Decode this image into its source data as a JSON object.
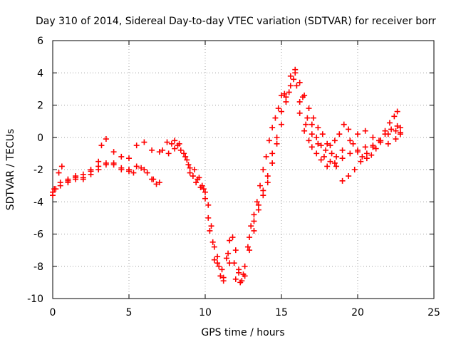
{
  "chart_data": {
    "type": "scatter",
    "title": "Day 310 of 2014, Sidereal Day-to-day VTEC variation (SDTVAR) for receiver borr",
    "xlabel": "GPS time / hours",
    "ylabel": "SDTVAR / TECUs",
    "xlim": [
      0,
      25
    ],
    "ylim": [
      -10,
      6
    ],
    "xticks": [
      "0",
      "5",
      "10",
      "15",
      "20",
      "25"
    ],
    "yticks": [
      "-10",
      "-8",
      "-6",
      "-4",
      "-2",
      "0",
      "2",
      "4",
      "6"
    ],
    "grid": true,
    "marker": "+",
    "color": "#ff0000",
    "series": [
      {
        "points": [
          [
            0.0,
            -3.6
          ],
          [
            0.2,
            -3.2
          ],
          [
            0.4,
            -2.2
          ],
          [
            0.6,
            -1.8
          ],
          [
            1.0,
            -2.7
          ],
          [
            1.5,
            -2.5
          ],
          [
            2.0,
            -2.6
          ],
          [
            2.5,
            -2.3
          ],
          [
            3.0,
            -1.5
          ],
          [
            3.2,
            -0.5
          ],
          [
            3.5,
            -0.1
          ],
          [
            4.0,
            -0.9
          ],
          [
            4.5,
            -1.2
          ],
          [
            5.0,
            -1.3
          ],
          [
            5.5,
            -0.5
          ],
          [
            6.0,
            -0.3
          ],
          [
            6.5,
            -0.8
          ],
          [
            7.0,
            -0.9
          ],
          [
            7.5,
            -0.3
          ],
          [
            8.0,
            -0.2
          ],
          [
            8.4,
            -0.8
          ],
          [
            8.8,
            -1.4
          ],
          [
            9.0,
            -1.9
          ],
          [
            9.3,
            -2.0
          ],
          [
            9.6,
            -2.5
          ],
          [
            9.8,
            -3.0
          ],
          [
            10.0,
            -3.4
          ],
          [
            10.2,
            -4.2
          ],
          [
            10.4,
            -5.5
          ],
          [
            10.6,
            -6.8
          ],
          [
            10.8,
            -7.8
          ],
          [
            11.0,
            -8.6
          ],
          [
            11.2,
            -8.9
          ],
          [
            11.5,
            -7.2
          ],
          [
            11.8,
            -6.2
          ],
          [
            12.0,
            -7.0
          ],
          [
            12.2,
            -8.2
          ],
          [
            12.4,
            -8.9
          ],
          [
            12.6,
            -8.0
          ],
          [
            12.8,
            -6.8
          ],
          [
            13.0,
            -5.5
          ],
          [
            13.2,
            -4.8
          ],
          [
            13.4,
            -4.0
          ],
          [
            13.6,
            -3.0
          ],
          [
            13.8,
            -2.0
          ],
          [
            14.0,
            -1.2
          ],
          [
            14.2,
            -0.2
          ],
          [
            14.4,
            0.6
          ],
          [
            14.6,
            1.2
          ],
          [
            14.8,
            1.8
          ],
          [
            15.0,
            2.6
          ],
          [
            15.2,
            2.7
          ],
          [
            15.5,
            2.8
          ],
          [
            15.8,
            3.6
          ],
          [
            16.0,
            3.2
          ],
          [
            16.2,
            1.5
          ],
          [
            16.5,
            0.4
          ],
          [
            16.8,
            -0.2
          ],
          [
            17.0,
            -0.6
          ],
          [
            17.3,
            -1.0
          ],
          [
            17.6,
            -1.4
          ],
          [
            18.0,
            -1.8
          ],
          [
            18.5,
            -1.6
          ],
          [
            19.0,
            -1.3
          ],
          [
            19.5,
            -1.0
          ],
          [
            20.0,
            -0.8
          ],
          [
            20.5,
            -0.6
          ],
          [
            21.0,
            -0.5
          ],
          [
            21.5,
            -0.2
          ],
          [
            22.0,
            0.2
          ],
          [
            22.5,
            0.4
          ],
          [
            22.8,
            0.6
          ]
        ]
      },
      {
        "points": [
          [
            0.0,
            -3.4
          ],
          [
            0.5,
            -3.0
          ],
          [
            1.0,
            -2.8
          ],
          [
            1.5,
            -2.6
          ],
          [
            2.0,
            -2.3
          ],
          [
            2.5,
            -2.1
          ],
          [
            3.0,
            -2.0
          ],
          [
            3.5,
            -1.7
          ],
          [
            4.0,
            -1.6
          ],
          [
            4.5,
            -2.0
          ],
          [
            5.0,
            -2.1
          ],
          [
            5.5,
            -1.8
          ],
          [
            6.0,
            -2.0
          ],
          [
            6.5,
            -2.6
          ],
          [
            6.8,
            -2.9
          ],
          [
            7.2,
            -0.8
          ],
          [
            7.8,
            -0.4
          ],
          [
            8.2,
            -0.5
          ],
          [
            8.6,
            -1.0
          ],
          [
            8.9,
            -1.7
          ],
          [
            9.2,
            -2.4
          ],
          [
            9.5,
            -2.6
          ],
          [
            9.9,
            -3.2
          ],
          [
            10.2,
            -5.0
          ],
          [
            10.5,
            -6.5
          ],
          [
            10.8,
            -7.4
          ],
          [
            11.1,
            -8.2
          ],
          [
            11.4,
            -7.5
          ],
          [
            11.6,
            -6.4
          ],
          [
            11.9,
            -7.8
          ],
          [
            12.2,
            -8.4
          ],
          [
            12.5,
            -8.5
          ],
          [
            12.9,
            -7.0
          ],
          [
            13.2,
            -5.8
          ],
          [
            13.5,
            -4.5
          ],
          [
            13.8,
            -3.6
          ],
          [
            14.1,
            -2.8
          ],
          [
            14.4,
            -1.6
          ],
          [
            14.7,
            -0.4
          ],
          [
            15.0,
            0.8
          ],
          [
            15.3,
            2.2
          ],
          [
            15.6,
            3.2
          ],
          [
            15.9,
            4.2
          ],
          [
            16.2,
            3.4
          ],
          [
            16.5,
            2.6
          ],
          [
            16.8,
            1.8
          ],
          [
            17.1,
            1.2
          ],
          [
            17.4,
            0.6
          ],
          [
            17.7,
            0.2
          ],
          [
            18.0,
            -0.4
          ],
          [
            18.3,
            -1.0
          ],
          [
            18.6,
            -1.2
          ],
          [
            19.0,
            -0.8
          ],
          [
            19.5,
            -0.2
          ],
          [
            20.0,
            0.2
          ],
          [
            20.5,
            0.4
          ],
          [
            21.0,
            0.0
          ],
          [
            21.5,
            -0.2
          ],
          [
            22.0,
            -0.4
          ],
          [
            22.5,
            -0.1
          ],
          [
            22.8,
            0.2
          ]
        ]
      },
      {
        "points": [
          [
            0.1,
            -3.2
          ],
          [
            0.5,
            -2.8
          ],
          [
            1.0,
            -2.6
          ],
          [
            1.5,
            -2.4
          ],
          [
            2.0,
            -2.5
          ],
          [
            2.5,
            -2.0
          ],
          [
            3.0,
            -1.8
          ],
          [
            3.5,
            -1.6
          ],
          [
            4.0,
            -1.7
          ],
          [
            4.5,
            -1.9
          ],
          [
            5.0,
            -2.0
          ],
          [
            5.3,
            -2.2
          ],
          [
            5.8,
            -1.9
          ],
          [
            6.2,
            -2.2
          ],
          [
            6.6,
            -2.6
          ],
          [
            7.0,
            -2.8
          ],
          [
            7.6,
            -1.0
          ],
          [
            8.0,
            -0.7
          ],
          [
            8.3,
            -0.4
          ],
          [
            8.7,
            -1.2
          ],
          [
            9.0,
            -2.2
          ],
          [
            9.4,
            -2.8
          ],
          [
            9.7,
            -3.1
          ],
          [
            10.0,
            -3.8
          ],
          [
            10.3,
            -5.8
          ],
          [
            10.6,
            -7.6
          ],
          [
            10.9,
            -8.0
          ],
          [
            11.2,
            -8.7
          ],
          [
            11.6,
            -7.8
          ],
          [
            12.0,
            -8.8
          ],
          [
            12.3,
            -9.0
          ],
          [
            12.6,
            -8.6
          ],
          [
            12.9,
            -6.2
          ],
          [
            13.2,
            -5.2
          ],
          [
            13.5,
            -4.2
          ],
          [
            13.8,
            -3.3
          ],
          [
            14.1,
            -2.4
          ],
          [
            14.4,
            -1.0
          ],
          [
            14.7,
            0.0
          ],
          [
            15.0,
            1.6
          ],
          [
            15.3,
            2.5
          ],
          [
            15.6,
            3.8
          ],
          [
            15.9,
            4.0
          ],
          [
            16.2,
            2.2
          ],
          [
            16.6,
            0.8
          ],
          [
            17.0,
            0.2
          ],
          [
            17.4,
            -0.4
          ],
          [
            17.8,
            -1.2
          ],
          [
            18.2,
            -1.5
          ],
          [
            18.6,
            -1.8
          ],
          [
            19.0,
            -2.7
          ],
          [
            19.4,
            -2.4
          ],
          [
            19.8,
            -2.0
          ],
          [
            20.2,
            -1.5
          ],
          [
            20.6,
            -1.0
          ],
          [
            21.0,
            -0.6
          ],
          [
            21.4,
            -0.2
          ],
          [
            21.8,
            0.2
          ],
          [
            22.2,
            0.5
          ],
          [
            22.6,
            0.7
          ],
          [
            22.8,
            0.3
          ]
        ]
      },
      {
        "points": [
          [
            16.4,
            2.5
          ],
          [
            16.7,
            1.2
          ],
          [
            17.0,
            0.8
          ],
          [
            17.3,
            0.0
          ],
          [
            17.6,
            -0.5
          ],
          [
            17.9,
            -0.8
          ],
          [
            18.2,
            -0.5
          ],
          [
            18.5,
            -0.2
          ],
          [
            18.8,
            0.2
          ],
          [
            19.1,
            0.8
          ],
          [
            19.4,
            0.5
          ],
          [
            19.7,
            -0.4
          ],
          [
            20.0,
            -0.9
          ],
          [
            20.3,
            -1.2
          ],
          [
            20.6,
            -1.3
          ],
          [
            20.9,
            -1.1
          ],
          [
            21.2,
            -0.7
          ],
          [
            21.5,
            -0.3
          ],
          [
            21.8,
            0.4
          ],
          [
            22.1,
            0.9
          ],
          [
            22.4,
            1.3
          ],
          [
            22.6,
            1.6
          ]
        ]
      }
    ]
  }
}
